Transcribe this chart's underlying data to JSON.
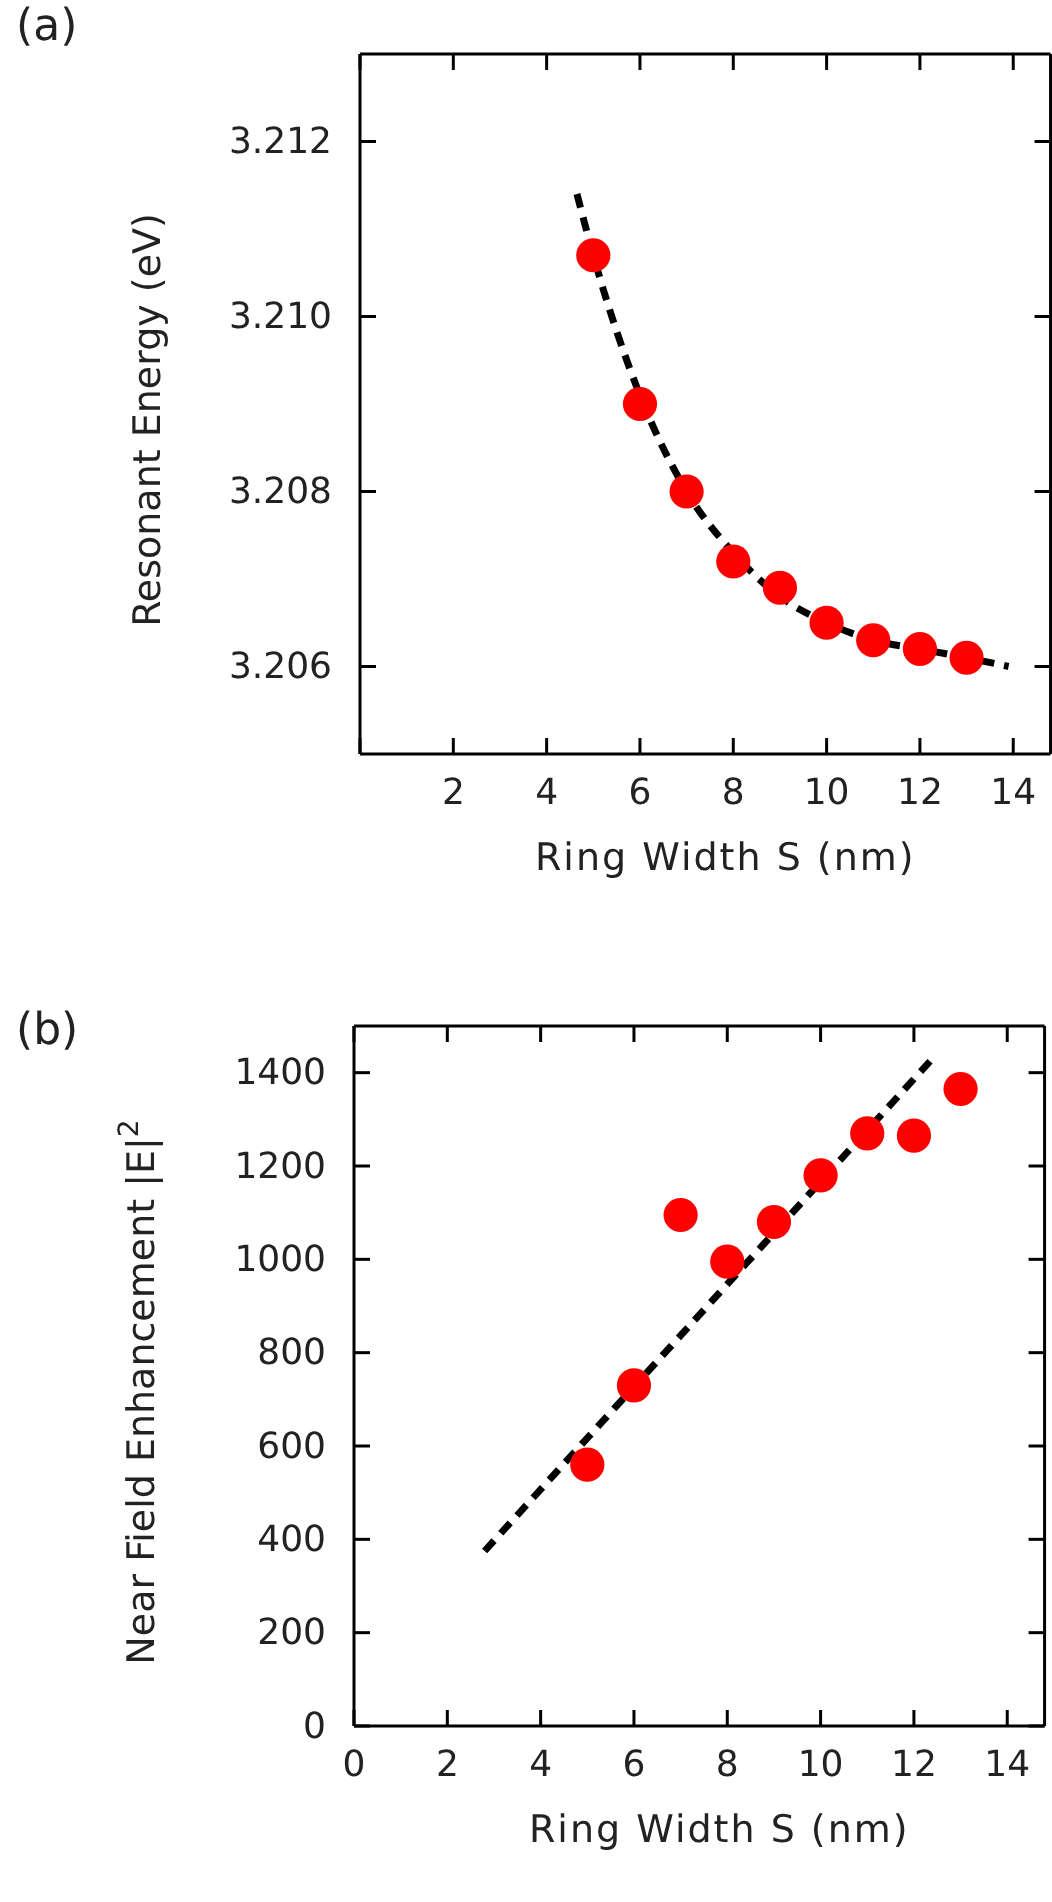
{
  "chart_data": [
    {
      "type": "scatter",
      "xlabel": "Ring Width S (nm)",
      "ylabel": "Resonant Energy (eV)",
      "annotations": [
        "(a)"
      ],
      "xlim": [
        0,
        14.8
      ],
      "ylim": [
        3.205,
        3.213
      ],
      "xticks": [
        {
          "value": 0,
          "label": null
        },
        2,
        4,
        6,
        8,
        10,
        12,
        14
      ],
      "yticks": [
        3.206,
        3.208,
        {
          "value": 3.21,
          "label": "3.210"
        },
        3.212
      ],
      "grid": false,
      "series": [
        {
          "type": "line",
          "color": "#000000",
          "line_style": "dashed",
          "marker": "none",
          "x": [
            4.65,
            5,
            6,
            7,
            8,
            9,
            10,
            11,
            12,
            13,
            13.9
          ],
          "values": [
            3.2114,
            3.2107,
            3.2091,
            3.208,
            3.2073,
            3.2068,
            3.2065,
            3.2063,
            3.2062,
            3.2061,
            3.206
          ]
        },
        {
          "color": "#ff0000",
          "marker": "circle",
          "x": [
            5,
            6,
            7,
            8,
            9,
            10,
            11,
            12,
            13
          ],
          "values": [
            3.2107,
            3.209,
            3.208,
            3.2072,
            3.2069,
            3.2065,
            3.2063,
            3.2062,
            3.2061
          ]
        }
      ]
    },
    {
      "type": "scatter",
      "xlabel": "Ring Width S (nm)",
      "ylabel": "Near Field Enhancement |E|$^{2}$",
      "annotations": [
        "(b)"
      ],
      "xlim": [
        0,
        14.8
      ],
      "ylim": [
        0,
        1500
      ],
      "xticks": [
        0,
        2,
        4,
        6,
        8,
        10,
        12,
        14
      ],
      "yticks": [
        0,
        200,
        400,
        600,
        800,
        1000,
        1200,
        1400
      ],
      "grid": false,
      "series": [
        {
          "type": "line",
          "color": "#000000",
          "line_style": "dashed",
          "marker": "none",
          "x": [
            2.8,
            12.35
          ],
          "values": [
            375,
            1425
          ]
        },
        {
          "color": "#ff0000",
          "marker": "circle",
          "x": [
            5,
            6,
            7,
            8,
            9,
            10,
            11,
            12,
            13
          ],
          "values": [
            560,
            730,
            1095,
            995,
            1080,
            1180,
            1270,
            1265,
            1365
          ]
        }
      ]
    }
  ]
}
